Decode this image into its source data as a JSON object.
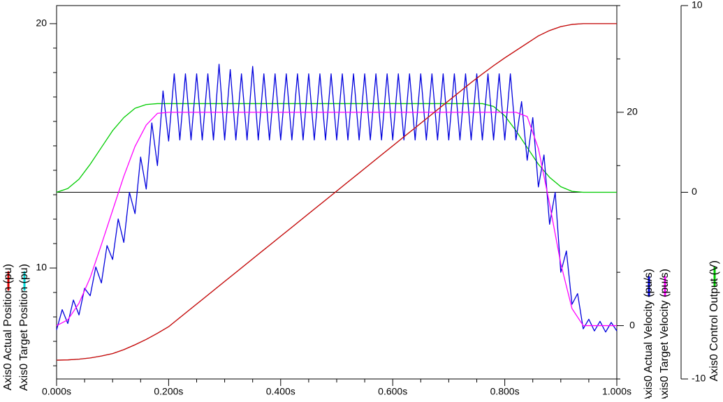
{
  "chart_data": {
    "type": "line",
    "xlim": [
      0,
      1
    ],
    "xticks": [
      {
        "value": 0,
        "label": "0.000s"
      },
      {
        "value": 0.2,
        "label": "0.200s"
      },
      {
        "value": 0.4,
        "label": "0.400s"
      },
      {
        "value": 0.6,
        "label": "0.600s"
      },
      {
        "value": 0.8,
        "label": "0.800s"
      },
      {
        "value": 1,
        "label": "1.000s"
      }
    ],
    "x_minor_ticks": [
      0.05,
      0.1,
      0.15,
      0.25,
      0.3,
      0.35,
      0.45,
      0.5,
      0.55,
      0.65,
      0.7,
      0.75,
      0.85,
      0.9,
      0.95
    ],
    "ylim": [
      5.46,
      20.74
    ],
    "yticks": [
      10,
      20
    ],
    "y_minor_ticks": [
      6,
      7,
      8,
      9,
      11,
      12,
      13,
      14,
      15,
      16,
      17,
      18,
      19
    ],
    "y2lim": [
      -5,
      30
    ],
    "y2ticks": [
      0,
      20
    ],
    "y2_minor_ticks": [
      -5,
      5,
      10,
      15,
      25,
      30
    ],
    "y3lim": [
      -10,
      10
    ],
    "y3ticks": [
      -10,
      0,
      10
    ],
    "y3_zero_line": true,
    "series": [
      {
        "name": "Axis0 Actual Position (pu)",
        "color": "#dd0000",
        "axis": "y",
        "x": [
          0,
          0.02,
          0.04,
          0.06,
          0.08,
          0.1,
          0.12,
          0.14,
          0.16,
          0.18,
          0.2,
          0.22,
          0.24,
          0.26,
          0.28,
          0.3,
          0.32,
          0.34,
          0.36,
          0.38,
          0.4,
          0.42,
          0.44,
          0.46,
          0.48,
          0.5,
          0.52,
          0.54,
          0.56,
          0.58,
          0.6,
          0.62,
          0.64,
          0.66,
          0.68,
          0.7,
          0.72,
          0.74,
          0.76,
          0.78,
          0.8,
          0.82,
          0.84,
          0.86,
          0.88,
          0.9,
          0.92,
          0.94,
          0.96,
          0.98,
          1
        ],
        "values": [
          6.23,
          6.24,
          6.27,
          6.32,
          6.4,
          6.5,
          6.66,
          6.86,
          7.08,
          7.33,
          7.6,
          7.97,
          8.34,
          8.71,
          9.08,
          9.45,
          9.82,
          10.19,
          10.56,
          10.93,
          11.3,
          11.67,
          12.04,
          12.41,
          12.78,
          13.15,
          13.52,
          13.89,
          14.26,
          14.63,
          15.0,
          15.37,
          15.74,
          16.11,
          16.48,
          16.85,
          17.22,
          17.59,
          17.94,
          18.28,
          18.6,
          18.9,
          19.2,
          19.5,
          19.72,
          19.88,
          19.97,
          20,
          20,
          20,
          20
        ]
      },
      {
        "name": "Axis0 Target Position (pu)",
        "color": "#00d8d8",
        "axis": "y",
        "x": [
          0,
          0.02,
          0.04,
          0.06,
          0.08,
          0.1,
          0.12,
          0.14,
          0.16,
          0.18,
          0.2,
          0.22,
          0.24,
          0.26,
          0.28,
          0.3,
          0.32,
          0.34,
          0.36,
          0.38,
          0.4,
          0.42,
          0.44,
          0.46,
          0.48,
          0.5,
          0.52,
          0.54,
          0.56,
          0.58,
          0.6,
          0.62,
          0.64,
          0.66,
          0.68,
          0.7,
          0.72,
          0.74,
          0.76,
          0.78,
          0.8,
          0.82,
          0.84,
          0.86,
          0.88,
          0.9,
          0.92,
          0.94,
          0.96,
          0.98,
          1
        ],
        "values": [
          6.23,
          6.24,
          6.27,
          6.32,
          6.4,
          6.5,
          6.66,
          6.86,
          7.08,
          7.33,
          7.6,
          7.97,
          8.34,
          8.71,
          9.08,
          9.45,
          9.82,
          10.19,
          10.56,
          10.93,
          11.3,
          11.67,
          12.04,
          12.41,
          12.78,
          13.15,
          13.52,
          13.89,
          14.26,
          14.63,
          15.0,
          15.37,
          15.74,
          16.11,
          16.48,
          16.85,
          17.22,
          17.59,
          17.94,
          18.28,
          18.6,
          18.9,
          19.2,
          19.5,
          19.72,
          19.88,
          19.97,
          20,
          20,
          20,
          20
        ]
      },
      {
        "name": "Axis0 Actual Velocity (pu/s)",
        "color": "#0000dd",
        "axis": "y2",
        "x": [
          0,
          0.01,
          0.02,
          0.03,
          0.04,
          0.05,
          0.06,
          0.07,
          0.08,
          0.09,
          0.1,
          0.11,
          0.12,
          0.13,
          0.14,
          0.15,
          0.16,
          0.17,
          0.18,
          0.19,
          0.2,
          0.21,
          0.22,
          0.23,
          0.24,
          0.25,
          0.26,
          0.27,
          0.28,
          0.29,
          0.3,
          0.31,
          0.32,
          0.33,
          0.34,
          0.35,
          0.36,
          0.37,
          0.38,
          0.39,
          0.4,
          0.41,
          0.42,
          0.43,
          0.44,
          0.45,
          0.46,
          0.47,
          0.48,
          0.49,
          0.5,
          0.51,
          0.52,
          0.53,
          0.54,
          0.55,
          0.56,
          0.57,
          0.58,
          0.59,
          0.6,
          0.61,
          0.62,
          0.63,
          0.64,
          0.65,
          0.66,
          0.67,
          0.68,
          0.69,
          0.7,
          0.71,
          0.72,
          0.73,
          0.74,
          0.75,
          0.76,
          0.77,
          0.78,
          0.79,
          0.8,
          0.81,
          0.82,
          0.83,
          0.84,
          0.85,
          0.86,
          0.87,
          0.88,
          0.89,
          0.9,
          0.91,
          0.92,
          0.93,
          0.94,
          0.95,
          0.96,
          0.97,
          0.98,
          0.99,
          1
        ],
        "values": [
          -0.4,
          1.5,
          0.2,
          2.4,
          1.0,
          3.5,
          2.8,
          5.5,
          4.0,
          7.5,
          6.2,
          10.0,
          7.8,
          12.5,
          10.5,
          15.8,
          12.8,
          19.0,
          15.0,
          22.0,
          17.3,
          23.6,
          17.4,
          23.6,
          17.4,
          23.6,
          17.4,
          23.6,
          17.4,
          24.5,
          17.4,
          24.0,
          17.4,
          23.6,
          17.4,
          24.3,
          17.4,
          23.6,
          17.4,
          23.6,
          17.4,
          23.6,
          17.4,
          23.6,
          17.4,
          23.6,
          17.4,
          23.6,
          17.4,
          23.6,
          17.4,
          23.6,
          17.4,
          23.6,
          17.4,
          23.6,
          17.4,
          23.6,
          17.4,
          23.6,
          17.4,
          23.6,
          17.4,
          23.6,
          17.4,
          23.6,
          17.4,
          23.6,
          17.4,
          23.6,
          17.4,
          23.6,
          17.4,
          23.6,
          17.4,
          23.6,
          17.4,
          23.6,
          17.4,
          23.6,
          17.4,
          23.6,
          17.4,
          21.0,
          15.5,
          19.5,
          13.0,
          16.0,
          9.5,
          12.5,
          5.0,
          7.0,
          2.0,
          3.0,
          -0.3,
          0.6,
          -0.5,
          0.4,
          -0.6,
          0.3,
          -0.5
        ]
      },
      {
        "name": "Axis0 Target Velocity (pu/s)",
        "color": "#ff00ff",
        "axis": "y2",
        "x": [
          0,
          0.02,
          0.04,
          0.06,
          0.08,
          0.1,
          0.12,
          0.14,
          0.16,
          0.18,
          0.2,
          0.22,
          0.24,
          0.26,
          0.28,
          0.3,
          0.32,
          0.34,
          0.36,
          0.38,
          0.4,
          0.42,
          0.44,
          0.46,
          0.48,
          0.5,
          0.52,
          0.54,
          0.56,
          0.58,
          0.6,
          0.62,
          0.64,
          0.66,
          0.68,
          0.7,
          0.72,
          0.74,
          0.76,
          0.78,
          0.8,
          0.82,
          0.84,
          0.86,
          0.88,
          0.9,
          0.92,
          0.94,
          0.96,
          0.98,
          1
        ],
        "values": [
          0,
          0.54,
          2.1,
          4.5,
          7.6,
          10.8,
          14.0,
          16.8,
          18.8,
          19.9,
          20,
          20,
          20,
          20,
          20,
          20,
          20,
          20,
          20,
          20,
          20,
          20,
          20,
          20,
          20,
          20,
          20,
          20,
          20,
          20,
          20,
          20,
          20,
          20,
          20,
          20,
          20,
          20,
          20,
          20,
          20,
          20,
          19.6,
          16.6,
          11.4,
          5.8,
          1.6,
          0,
          0,
          0,
          0
        ]
      },
      {
        "name": "Axis0 Control Output (V)",
        "color": "#00cc00",
        "axis": "y3",
        "x": [
          0,
          0.02,
          0.04,
          0.06,
          0.08,
          0.1,
          0.12,
          0.14,
          0.16,
          0.18,
          0.2,
          0.22,
          0.24,
          0.26,
          0.28,
          0.3,
          0.32,
          0.34,
          0.36,
          0.38,
          0.4,
          0.42,
          0.44,
          0.46,
          0.48,
          0.5,
          0.52,
          0.54,
          0.56,
          0.58,
          0.6,
          0.62,
          0.64,
          0.66,
          0.68,
          0.7,
          0.72,
          0.74,
          0.76,
          0.78,
          0.8,
          0.82,
          0.84,
          0.86,
          0.88,
          0.9,
          0.92,
          0.94,
          0.96,
          0.98,
          1
        ],
        "values": [
          0,
          0.2,
          0.7,
          1.5,
          2.4,
          3.3,
          4.0,
          4.5,
          4.7,
          4.75,
          4.75,
          4.75,
          4.75,
          4.75,
          4.75,
          4.75,
          4.75,
          4.75,
          4.75,
          4.75,
          4.75,
          4.75,
          4.75,
          4.75,
          4.75,
          4.75,
          4.75,
          4.75,
          4.75,
          4.75,
          4.75,
          4.75,
          4.75,
          4.75,
          4.75,
          4.75,
          4.75,
          4.75,
          4.75,
          4.6,
          4.1,
          3.3,
          2.4,
          1.5,
          0.8,
          0.3,
          0.05,
          0,
          0,
          0,
          0
        ]
      }
    ]
  }
}
